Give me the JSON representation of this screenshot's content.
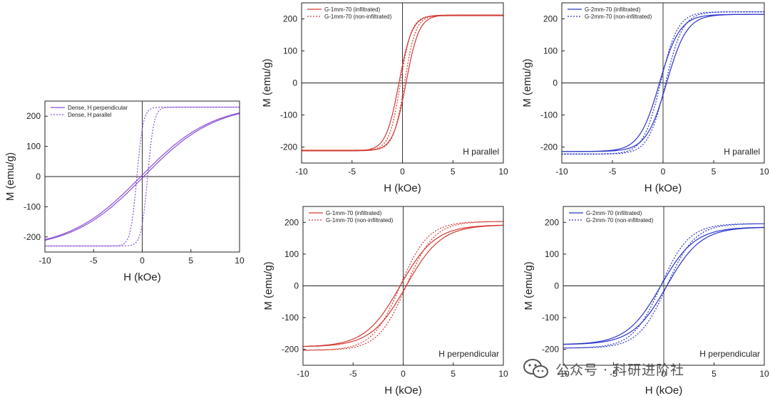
{
  "figure_title": "",
  "watermark": {
    "text": "公众号 · 科研进阶社",
    "icon": "wechat-icon"
  },
  "chart_data": [
    {
      "id": "dense",
      "type": "line",
      "xlabel": "H (kOe)",
      "ylabel": "M (emu/g)",
      "xlim": [
        -10,
        10
      ],
      "ylim": [
        -250,
        250
      ],
      "xticks": [
        -10,
        -5,
        0,
        5,
        10
      ],
      "yticks": [
        -200,
        -100,
        0,
        100,
        200
      ],
      "annotation": "",
      "legend_position": "top-left",
      "series": [
        {
          "name": "Dense, H perpendicular",
          "color": "#8a4fd6",
          "style": "solid",
          "ms": 240,
          "hk": 14.8,
          "hc": 0.15
        },
        {
          "name": "Dense, H parallel",
          "color": "#8a4fd6",
          "style": "dotted",
          "ms": 230,
          "hk": 1.3,
          "hc": 0.55
        }
      ]
    },
    {
      "id": "g1-parallel",
      "type": "line",
      "xlabel": "H (kOe)",
      "ylabel": "M (emu/g)",
      "xlim": [
        -10,
        10
      ],
      "ylim": [
        -250,
        250
      ],
      "xticks": [
        -10,
        -5,
        0,
        5,
        10
      ],
      "yticks": [
        -200,
        -100,
        0,
        100,
        200
      ],
      "annotation": "H parallel",
      "legend_position": "top-left",
      "series": [
        {
          "name": "G-1mm-70 (infiltrated)",
          "color": "#d23a32",
          "style": "solid",
          "ms": 212,
          "hk": 2.6,
          "hc": 0.35
        },
        {
          "name": "G-1mm-70 (non-infiltrated)",
          "color": "#d23a32",
          "style": "dotted",
          "ms": 210,
          "hk": 2.2,
          "hc": 0.2
        }
      ]
    },
    {
      "id": "g2-parallel",
      "type": "line",
      "xlabel": "H (kOe)",
      "ylabel": "M (emu/g)",
      "xlim": [
        -10,
        10
      ],
      "ylim": [
        -250,
        250
      ],
      "xticks": [
        -10,
        -5,
        0,
        5,
        10
      ],
      "yticks": [
        -200,
        -100,
        0,
        100,
        200
      ],
      "annotation": "H parallel",
      "legend_position": "top-left",
      "series": [
        {
          "name": "G-2mm-70 (infiltrated)",
          "color": "#2b35c9",
          "style": "solid",
          "ms": 214,
          "hk": 4.0,
          "hc": 0.35
        },
        {
          "name": "G-2mm-70 (non-infiltrated)",
          "color": "#2b35c9",
          "style": "dotted",
          "ms": 222,
          "hk": 3.4,
          "hc": 0.25
        }
      ]
    },
    {
      "id": "g1-perpendicular",
      "type": "line",
      "xlabel": "H (kOe)",
      "ylabel": "M (emu/g)",
      "xlim": [
        -10,
        10
      ],
      "ylim": [
        -250,
        250
      ],
      "xticks": [
        -10,
        -5,
        0,
        5,
        10
      ],
      "yticks": [
        -200,
        -100,
        0,
        100,
        200
      ],
      "annotation": "H perpendicular",
      "legend_position": "top-left",
      "series": [
        {
          "name": "G-1mm-70 (infiltrated)",
          "color": "#d23a32",
          "style": "solid",
          "ms": 192,
          "hk": 7.0,
          "hc": 0.3
        },
        {
          "name": "G-1mm-70 (non-infiltrated)",
          "color": "#d23a32",
          "style": "dotted",
          "ms": 203,
          "hk": 5.6,
          "hc": 0.3
        }
      ]
    },
    {
      "id": "g2-perpendicular",
      "type": "line",
      "xlabel": "H (kOe)",
      "ylabel": "M (emu/g)",
      "xlim": [
        -10,
        10
      ],
      "ylim": [
        -250,
        250
      ],
      "xticks": [
        -10,
        -5,
        0,
        5,
        10
      ],
      "yticks": [
        -200,
        -100,
        0,
        100,
        200
      ],
      "annotation": "H perpendicular",
      "legend_position": "top-left",
      "series": [
        {
          "name": "G-2mm-70 (infiltrated)",
          "color": "#2b35c9",
          "style": "solid",
          "ms": 185,
          "hk": 6.8,
          "hc": 0.3
        },
        {
          "name": "G-2mm-70 (non-infiltrated)",
          "color": "#2b35c9",
          "style": "dotted",
          "ms": 196,
          "hk": 5.6,
          "hc": 0.3
        }
      ]
    }
  ]
}
